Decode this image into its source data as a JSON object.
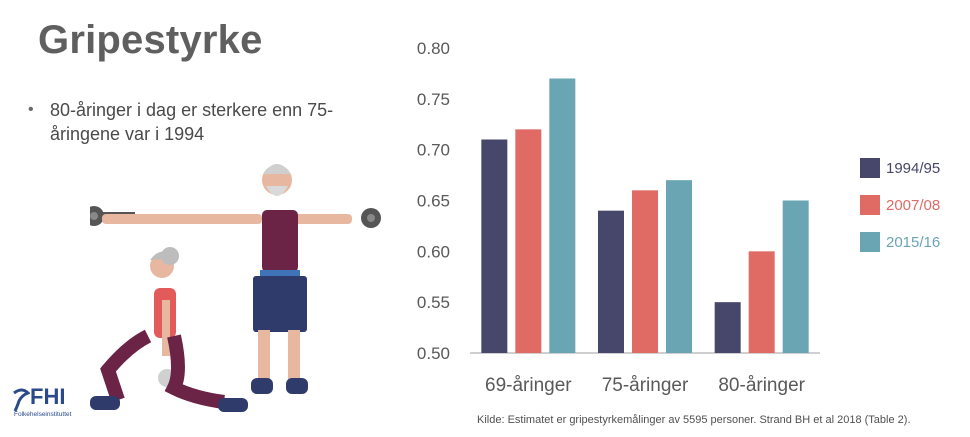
{
  "slide": {
    "title": "Gripestyrke",
    "bullets": [
      "80-åringer i dag er sterkere enn 75-åringene var i 1994"
    ],
    "source": "Kilde: Estimatet er  gripestyrkemålinger av 5595 personer. Strand BH et al 2018 (Table 2).",
    "logo": {
      "text": "FHI",
      "subtitle": "Folkehelseinstituttet"
    }
  },
  "chart_data": {
    "type": "bar",
    "title": "",
    "xlabel": "",
    "ylabel": "",
    "categories": [
      "69-åringer",
      "75-åringer",
      "80-åringer"
    ],
    "series": [
      {
        "name": "1994/95",
        "color": "#47466b",
        "values": [
          0.71,
          0.64,
          0.55
        ]
      },
      {
        "name": "2007/08",
        "color": "#e06a64",
        "values": [
          0.72,
          0.66,
          0.6
        ]
      },
      {
        "name": "2015/16",
        "color": "#6aa5b4",
        "values": [
          0.77,
          0.67,
          0.65
        ]
      }
    ],
    "ylim": [
      0.5,
      0.8
    ],
    "yticks": [
      "0.50",
      "0.55",
      "0.60",
      "0.65",
      "0.70",
      "0.75",
      "0.80"
    ],
    "legend_position": "right",
    "grid": false
  }
}
